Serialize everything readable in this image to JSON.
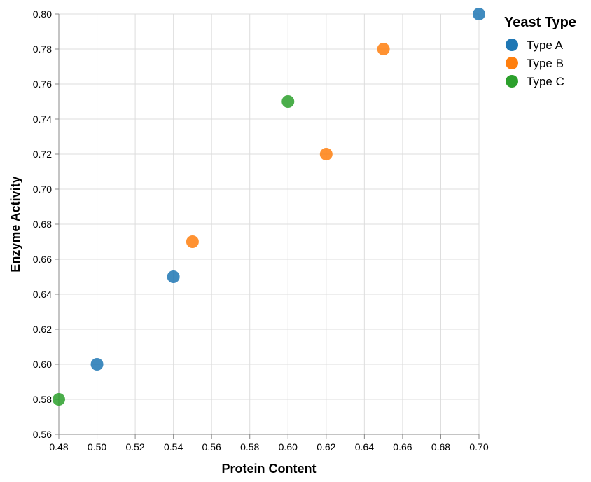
{
  "chart_data": {
    "type": "scatter",
    "xlabel": "Protein Content",
    "ylabel": "Enzyme Activity",
    "xlim": [
      0.48,
      0.7
    ],
    "ylim": [
      0.56,
      0.8
    ],
    "x_ticks": [
      "0.48",
      "0.50",
      "0.52",
      "0.54",
      "0.56",
      "0.58",
      "0.60",
      "0.62",
      "0.64",
      "0.66",
      "0.68",
      "0.70"
    ],
    "y_ticks": [
      "0.56",
      "0.58",
      "0.60",
      "0.62",
      "0.64",
      "0.66",
      "0.68",
      "0.70",
      "0.72",
      "0.74",
      "0.76",
      "0.78",
      "0.80"
    ],
    "grid": true,
    "legend": {
      "title": "Yeast Type",
      "placement": "top-right"
    },
    "series": [
      {
        "name": "Type A",
        "color": "#1f77b4",
        "points": [
          {
            "x": 0.5,
            "y": 0.6
          },
          {
            "x": 0.54,
            "y": 0.65
          },
          {
            "x": 0.7,
            "y": 0.8
          }
        ]
      },
      {
        "name": "Type B",
        "color": "#ff7f0e",
        "points": [
          {
            "x": 0.55,
            "y": 0.67
          },
          {
            "x": 0.62,
            "y": 0.72
          },
          {
            "x": 0.65,
            "y": 0.78
          }
        ]
      },
      {
        "name": "Type C",
        "color": "#2ca02c",
        "points": [
          {
            "x": 0.48,
            "y": 0.58
          },
          {
            "x": 0.6,
            "y": 0.75
          }
        ]
      }
    ]
  }
}
